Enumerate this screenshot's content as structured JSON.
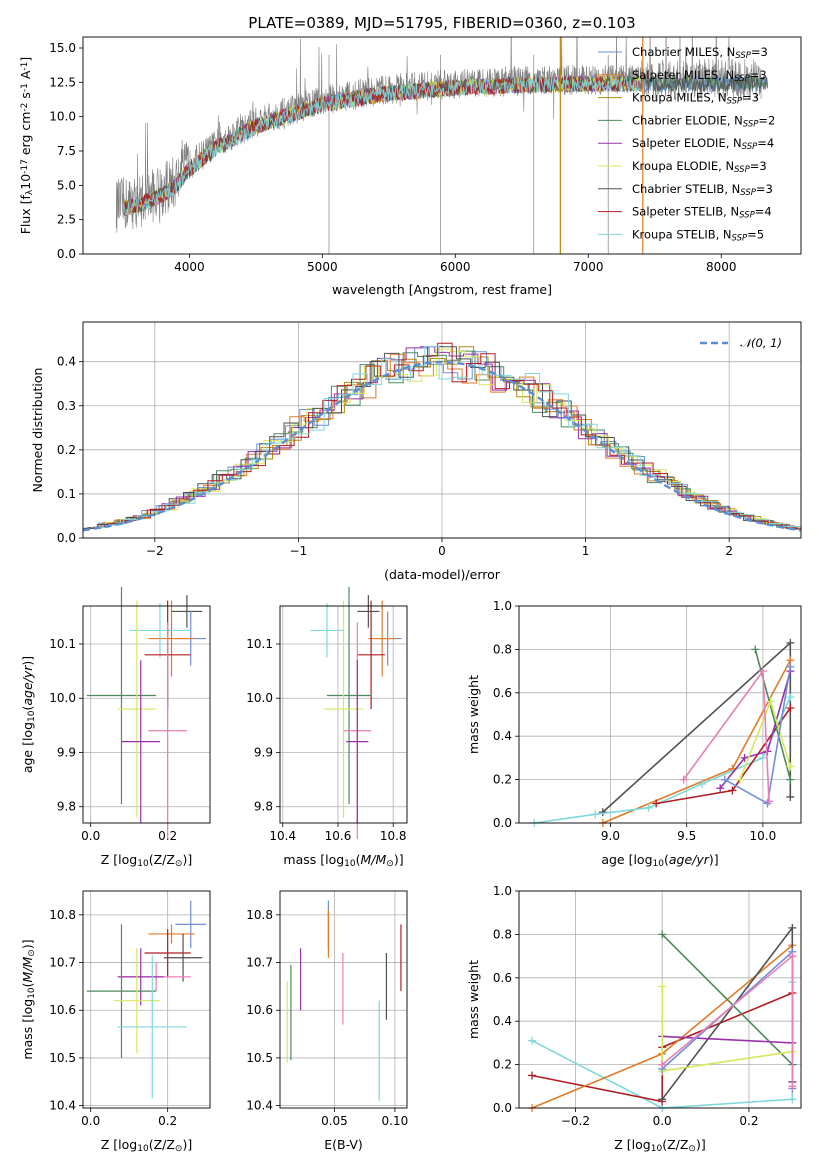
{
  "colors": {
    "chabrier_miles": "#6f8fd8",
    "salpeter_miles": "#e07b29",
    "kroupa_miles": "#b8860b",
    "chabrier_elodie": "#4e8a5e",
    "salpeter_elodie": "#9932aa",
    "kroupa_elodie": "#d7e85a",
    "chabrier_stelib": "#505050",
    "salpeter_stelib": "#b01e24",
    "kroupa_stelib": "#7fd8dc",
    "pink": "#e97fb4",
    "green_bright": "#2ca02c",
    "normal": "#5b8fd4",
    "data_gray": "#808080"
  },
  "chart_data": [
    {
      "id": "spectrum",
      "type": "line",
      "title": "PLATE=0389, MJD=51795, FIBERID=0360, z=0.103",
      "xlabel": "wavelength [Angstrom, rest frame]",
      "ylabel": "Flux [f$_\\lambda$10$^{-17}$ erg cm$^{-2}$ s$^{-1}$ A$^{-1}$]",
      "xlim": [
        3200,
        8600
      ],
      "ylim": [
        0,
        15.8
      ],
      "xticks": [
        "4000",
        "5000",
        "6000",
        "7000",
        "8000"
      ],
      "yticks": [
        "0.0",
        "2.5",
        "5.0",
        "7.5",
        "10.0",
        "12.5",
        "15.0"
      ],
      "grid": false,
      "legend_position": "top-right",
      "legend": [
        {
          "label": "Chabrier MILES, N",
          "sub": "SSP",
          "tail": "=3",
          "color": "chabrier_miles"
        },
        {
          "label": "Salpeter MILES, N",
          "sub": "SSP",
          "tail": "=3",
          "color": "salpeter_miles"
        },
        {
          "label": "Kroupa MILES, N",
          "sub": "SSP",
          "tail": "=3",
          "color": "kroupa_miles"
        },
        {
          "label": "Chabrier ELODIE, N",
          "sub": "SSP",
          "tail": "=2",
          "color": "chabrier_elodie"
        },
        {
          "label": "Salpeter ELODIE, N",
          "sub": "SSP",
          "tail": "=4",
          "color": "salpeter_elodie"
        },
        {
          "label": "Kroupa ELODIE, N",
          "sub": "SSP",
          "tail": "=3",
          "color": "kroupa_elodie"
        },
        {
          "label": "Chabrier STELIB, N",
          "sub": "SSP",
          "tail": "=3",
          "color": "chabrier_stelib"
        },
        {
          "label": "Salpeter STELIB, N",
          "sub": "SSP",
          "tail": "=4",
          "color": "salpeter_stelib"
        },
        {
          "label": "Kroupa STELIB, N",
          "sub": "SSP",
          "tail": "=5",
          "color": "kroupa_stelib"
        }
      ],
      "continuum": {
        "x": [
          3450,
          3600,
          3700,
          3800,
          3900,
          4000,
          4200,
          4500,
          5000,
          5500,
          6000,
          6500,
          7000,
          7500,
          8000,
          8300
        ],
        "y": [
          3.5,
          3.8,
          4.2,
          4.6,
          5.3,
          6.5,
          8.0,
          9.6,
          11.2,
          12.0,
          12.4,
          12.6,
          12.7,
          12.7,
          12.7,
          12.7
        ]
      },
      "data_range": [
        3450,
        8300
      ],
      "model_range": [
        3500,
        7400
      ],
      "model_spikes": [
        {
          "x": 6790,
          "color": "kroupa_miles"
        },
        {
          "x": 7410,
          "color": "salpeter_miles"
        }
      ]
    },
    {
      "id": "residuals",
      "type": "histogram",
      "xlabel": "(data-model)/error",
      "ylabel": "Normed distribution",
      "xlim": [
        -2.5,
        2.5
      ],
      "ylim": [
        0,
        0.49
      ],
      "xticks": [
        "−2",
        "−1",
        "0",
        "1",
        "2"
      ],
      "yticks": [
        "0.0",
        "0.1",
        "0.2",
        "0.3",
        "0.4"
      ],
      "grid": true,
      "legend_position": "top-right",
      "legend_label": "𝒩(0, 1)",
      "bin_width": 0.1,
      "series": [
        {
          "color": "chabrier_miles",
          "offset": 0.01,
          "shift": 0.0
        },
        {
          "color": "salpeter_miles",
          "offset": 0.04,
          "shift": -0.01
        },
        {
          "color": "kroupa_miles",
          "offset": 0.02,
          "shift": 0.01
        },
        {
          "color": "chabrier_elodie",
          "offset": 0.03,
          "shift": -0.02
        },
        {
          "color": "salpeter_elodie",
          "offset": 0.05,
          "shift": 0.0
        },
        {
          "color": "kroupa_elodie",
          "offset": 0.06,
          "shift": 0.02
        },
        {
          "color": "chabrier_stelib",
          "offset": 0.0,
          "shift": -0.01
        },
        {
          "color": "salpeter_stelib",
          "offset": 0.07,
          "shift": 0.01
        },
        {
          "color": "kroupa_stelib",
          "offset": 0.08,
          "shift": 0.03
        }
      ]
    },
    {
      "id": "age_vs_Z",
      "type": "errorbar",
      "xlabel": "Z [log$_{10}$(Z/Z$_\\odot$)]",
      "ylabel": "age  [log$_{10}$($age/yr$)]",
      "xlim": [
        -0.02,
        0.31
      ],
      "ylim": [
        9.77,
        10.17
      ],
      "xticks": [
        {
          "v": 0.0,
          "t": "0.0"
        },
        {
          "v": 0.2,
          "t": "0.2"
        }
      ],
      "yticks": [
        {
          "v": 9.8,
          "t": "9.8"
        },
        {
          "v": 9.9,
          "t": "9.9"
        },
        {
          "v": 10.0,
          "t": "10.0"
        },
        {
          "v": 10.1,
          "t": "10.1"
        }
      ],
      "grid": true,
      "points": [
        {
          "x": 0.25,
          "xerr": 0.04,
          "y": 10.16,
          "yerr": 0.03,
          "color": "chabrier_stelib"
        },
        {
          "x": 0.26,
          "xerr": 0.04,
          "y": 10.11,
          "yerr": 0.05,
          "color": "chabrier_miles"
        },
        {
          "x": 0.21,
          "xerr": 0.06,
          "y": 10.11,
          "yerr": 0.07,
          "color": "salpeter_miles"
        },
        {
          "x": 0.18,
          "xerr": 0.08,
          "y": 10.125,
          "yerr": 0.05,
          "color": "kroupa_stelib"
        },
        {
          "x": 0.2,
          "xerr": 0.06,
          "y": 10.08,
          "yerr": 0.1,
          "color": "salpeter_stelib"
        },
        {
          "x": 0.08,
          "xerr": 0.09,
          "y": 10.005,
          "yerr": 0.2,
          "color": "chabrier_elodie"
        },
        {
          "x": 0.12,
          "xerr": 0.05,
          "y": 9.98,
          "yerr": 0.2,
          "color": "kroupa_elodie"
        },
        {
          "x": 0.2,
          "xerr": 0.05,
          "y": 9.94,
          "yerr": 0.2,
          "color": "pink"
        },
        {
          "x": 0.13,
          "xerr": 0.05,
          "y": 9.92,
          "yerr": 0.15,
          "color": "salpeter_elodie"
        }
      ]
    },
    {
      "id": "age_vs_mass",
      "type": "errorbar",
      "xlabel": "mass [log$_{10}$($M/M_\\odot$)]",
      "ylabel": "",
      "xlim": [
        10.39,
        10.85
      ],
      "ylim": [
        9.77,
        10.17
      ],
      "xticks": [
        {
          "v": 10.4,
          "t": "10.4"
        },
        {
          "v": 10.6,
          "t": "10.6"
        },
        {
          "v": 10.8,
          "t": "10.8"
        }
      ],
      "yticks": [
        {
          "v": 9.8,
          "t": "9.8"
        },
        {
          "v": 9.9,
          "t": "9.9"
        },
        {
          "v": 10.0,
          "t": "10.0"
        },
        {
          "v": 10.1,
          "t": "10.1"
        }
      ],
      "grid": true,
      "points": [
        {
          "x": 10.71,
          "xerr": 0.04,
          "y": 10.16,
          "yerr": 0.03,
          "color": "chabrier_stelib"
        },
        {
          "x": 10.78,
          "xerr": 0.05,
          "y": 10.11,
          "yerr": 0.05,
          "color": "chabrier_miles"
        },
        {
          "x": 10.76,
          "xerr": 0.05,
          "y": 10.11,
          "yerr": 0.07,
          "color": "salpeter_miles"
        },
        {
          "x": 10.56,
          "xerr": 0.06,
          "y": 10.125,
          "yerr": 0.05,
          "color": "kroupa_stelib"
        },
        {
          "x": 10.72,
          "xerr": 0.05,
          "y": 10.08,
          "yerr": 0.1,
          "color": "salpeter_stelib"
        },
        {
          "x": 10.64,
          "xerr": 0.08,
          "y": 10.005,
          "yerr": 0.2,
          "color": "chabrier_elodie"
        },
        {
          "x": 10.62,
          "xerr": 0.07,
          "y": 9.98,
          "yerr": 0.2,
          "color": "kroupa_elodie"
        },
        {
          "x": 10.67,
          "xerr": 0.05,
          "y": 9.94,
          "yerr": 0.2,
          "color": "pink"
        },
        {
          "x": 10.67,
          "xerr": 0.04,
          "y": 9.92,
          "yerr": 0.15,
          "color": "salpeter_elodie"
        }
      ]
    },
    {
      "id": "weight_vs_age",
      "type": "line",
      "xlabel": "age  [log$_{10}$($age/yr$)]",
      "ylabel": "mass weight",
      "xlim": [
        8.4,
        10.25
      ],
      "ylim": [
        0,
        1.0
      ],
      "xticks": [
        {
          "v": 9.0,
          "t": "9.0"
        },
        {
          "v": 9.5,
          "t": "9.5"
        },
        {
          "v": 10.0,
          "t": "10.0"
        }
      ],
      "yticks": [
        {
          "v": 0,
          "t": "0.0"
        },
        {
          "v": 0.2,
          "t": "0.2"
        },
        {
          "v": 0.4,
          "t": "0.4"
        },
        {
          "v": 0.6,
          "t": "0.6"
        },
        {
          "v": 0.8,
          "t": "0.8"
        },
        {
          "v": 1.0,
          "t": "1.0"
        }
      ],
      "grid": true,
      "series": [
        {
          "color": "chabrier_stelib",
          "x": [
            8.95,
            10.18,
            10.18
          ],
          "y": [
            0.05,
            0.83,
            0.12
          ]
        },
        {
          "color": "salpeter_miles",
          "x": [
            8.95,
            9.8,
            10.18
          ],
          "y": [
            0.0,
            0.25,
            0.75
          ]
        },
        {
          "color": "kroupa_stelib",
          "x": [
            8.5,
            8.9,
            9.25,
            9.6,
            10.0,
            10.18
          ],
          "y": [
            0.0,
            0.04,
            0.07,
            0.18,
            0.3,
            0.58
          ]
        },
        {
          "color": "salpeter_stelib",
          "x": [
            9.3,
            9.8,
            10.18
          ],
          "y": [
            0.09,
            0.15,
            0.53
          ]
        },
        {
          "color": "chabrier_elodie",
          "x": [
            9.95,
            10.18
          ],
          "y": [
            0.8,
            0.2
          ]
        },
        {
          "color": "salpeter_elodie",
          "x": [
            9.72,
            9.88,
            10.03,
            10.18
          ],
          "y": [
            0.16,
            0.3,
            0.33,
            0.7
          ]
        },
        {
          "color": "kroupa_elodie",
          "x": [
            9.85,
            10.05,
            10.18
          ],
          "y": [
            0.2,
            0.56,
            0.26
          ]
        },
        {
          "color": "chabrier_miles",
          "x": [
            9.75,
            10.03,
            10.18
          ],
          "y": [
            0.2,
            0.09,
            0.72
          ]
        },
        {
          "color": "pink",
          "x": [
            9.48,
            10.0,
            10.04
          ],
          "y": [
            0.2,
            0.7,
            0.1
          ]
        }
      ]
    },
    {
      "id": "mass_vs_Z",
      "type": "errorbar",
      "xlabel": "Z [log$_{10}$(Z/Z$_\\odot$)]",
      "ylabel": "mass [log$_{10}$($M/M_\\odot$)]",
      "xlim": [
        -0.02,
        0.31
      ],
      "ylim": [
        10.395,
        10.85
      ],
      "xticks": [
        {
          "v": 0.0,
          "t": "0.0"
        },
        {
          "v": 0.2,
          "t": "0.2"
        }
      ],
      "yticks": [
        {
          "v": 10.4,
          "t": "10.4"
        },
        {
          "v": 10.5,
          "t": "10.5"
        },
        {
          "v": 10.6,
          "t": "10.6"
        },
        {
          "v": 10.7,
          "t": "10.7"
        },
        {
          "v": 10.8,
          "t": "10.8"
        }
      ],
      "grid": true,
      "points": [
        {
          "x": 0.26,
          "xerr": 0.04,
          "y": 10.78,
          "yerr": 0.05,
          "color": "chabrier_miles"
        },
        {
          "x": 0.21,
          "xerr": 0.06,
          "y": 10.76,
          "yerr": 0.02,
          "color": "salpeter_miles"
        },
        {
          "x": 0.2,
          "xerr": 0.06,
          "y": 10.72,
          "yerr": 0.05,
          "color": "salpeter_stelib"
        },
        {
          "x": 0.24,
          "xerr": 0.05,
          "y": 10.71,
          "yerr": 0.05,
          "color": "chabrier_stelib"
        },
        {
          "x": 0.17,
          "xerr": 0.09,
          "y": 10.67,
          "yerr": 0.03,
          "color": "pink"
        },
        {
          "x": 0.13,
          "xerr": 0.06,
          "y": 10.67,
          "yerr": 0.06,
          "color": "salpeter_elodie"
        },
        {
          "x": 0.08,
          "xerr": 0.09,
          "y": 10.64,
          "yerr": 0.14,
          "color": "chabrier_elodie"
        },
        {
          "x": 0.12,
          "xerr": 0.06,
          "y": 10.62,
          "yerr": 0.11,
          "color": "kroupa_elodie"
        },
        {
          "x": 0.16,
          "xerr": 0.09,
          "y": 10.565,
          "yerr": 0.15,
          "color": "kroupa_stelib"
        }
      ]
    },
    {
      "id": "mass_vs_ebv",
      "type": "errorbar",
      "xlabel": "E(B-V)",
      "ylabel": "",
      "xlim": [
        0.005,
        0.11
      ],
      "ylim": [
        10.395,
        10.85
      ],
      "xticks": [
        {
          "v": 0.05,
          "t": "0.05"
        },
        {
          "v": 0.1,
          "t": "0.10"
        }
      ],
      "yticks": [
        {
          "v": 10.4,
          "t": "10.4"
        },
        {
          "v": 10.5,
          "t": "10.5"
        },
        {
          "v": 10.6,
          "t": "10.6"
        },
        {
          "v": 10.7,
          "t": "10.7"
        },
        {
          "v": 10.8,
          "t": "10.8"
        }
      ],
      "grid": true,
      "points": [
        {
          "x": 0.045,
          "y": 10.78,
          "yerr": 0.05,
          "color": "chabrier_miles"
        },
        {
          "x": 0.045,
          "y": 10.76,
          "yerr": 0.05,
          "color": "salpeter_miles"
        },
        {
          "x": 0.105,
          "y": 10.71,
          "yerr": 0.07,
          "color": "salpeter_stelib"
        },
        {
          "x": 0.093,
          "y": 10.65,
          "yerr": 0.07,
          "color": "chabrier_stelib"
        },
        {
          "x": 0.057,
          "y": 10.645,
          "yerr": 0.075,
          "color": "pink"
        },
        {
          "x": 0.022,
          "y": 10.665,
          "yerr": 0.065,
          "color": "salpeter_elodie"
        },
        {
          "x": 0.014,
          "y": 10.595,
          "yerr": 0.1,
          "color": "chabrier_elodie"
        },
        {
          "x": 0.011,
          "y": 10.575,
          "yerr": 0.085,
          "color": "kroupa_elodie"
        },
        {
          "x": 0.087,
          "y": 10.515,
          "yerr": 0.105,
          "color": "kroupa_stelib"
        }
      ]
    },
    {
      "id": "weight_vs_Z",
      "type": "line",
      "xlabel": "Z [log$_{10}$(Z/Z$_\\odot$)]",
      "ylabel": "mass weight",
      "xlim": [
        -0.33,
        0.32
      ],
      "ylim": [
        0,
        1.0
      ],
      "xticks": [
        {
          "v": -0.2,
          "t": "−0.2"
        },
        {
          "v": 0.0,
          "t": "0.0"
        },
        {
          "v": 0.2,
          "t": "0.2"
        }
      ],
      "yticks": [
        {
          "v": 0,
          "t": "0.0"
        },
        {
          "v": 0.2,
          "t": "0.2"
        },
        {
          "v": 0.4,
          "t": "0.4"
        },
        {
          "v": 0.6,
          "t": "0.6"
        },
        {
          "v": 0.8,
          "t": "0.8"
        },
        {
          "v": 1.0,
          "t": "1.0"
        }
      ],
      "grid": true,
      "series": [
        {
          "color": "kroupa_stelib",
          "x": [
            -0.3,
            0.0,
            0.3,
            0.3,
            0.3
          ],
          "y": [
            0.31,
            0.0,
            0.04,
            0.3,
            0.58
          ]
        },
        {
          "color": "salpeter_stelib",
          "x": [
            -0.3,
            0.0,
            0.0,
            0.3
          ],
          "y": [
            0.15,
            0.03,
            0.28,
            0.53
          ]
        },
        {
          "color": "salpeter_miles",
          "x": [
            -0.3,
            0.0,
            0.3
          ],
          "y": [
            0.0,
            0.25,
            0.75
          ]
        },
        {
          "color": "chabrier_stelib",
          "x": [
            0.0,
            0.3,
            0.3
          ],
          "y": [
            0.04,
            0.83,
            0.12
          ]
        },
        {
          "color": "chabrier_elodie",
          "x": [
            0.0,
            0.3
          ],
          "y": [
            0.8,
            0.2
          ]
        },
        {
          "color": "salpeter_elodie",
          "x": [
            0.0,
            0.3,
            0.3
          ],
          "y": [
            0.33,
            0.3,
            0.7
          ]
        },
        {
          "color": "kroupa_elodie",
          "x": [
            0.0,
            0.0,
            0.3
          ],
          "y": [
            0.56,
            0.17,
            0.26
          ]
        },
        {
          "color": "chabrier_miles",
          "x": [
            0.0,
            0.3,
            0.3
          ],
          "y": [
            0.18,
            0.72,
            0.09
          ]
        },
        {
          "color": "pink",
          "x": [
            0.0,
            0.3,
            0.3
          ],
          "y": [
            0.2,
            0.7,
            0.1
          ]
        }
      ]
    }
  ]
}
